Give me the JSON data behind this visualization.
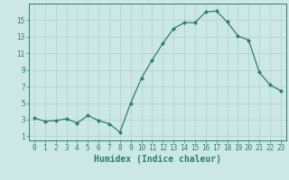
{
  "x": [
    0,
    1,
    2,
    3,
    4,
    5,
    6,
    7,
    8,
    9,
    10,
    11,
    12,
    13,
    14,
    15,
    16,
    17,
    18,
    19,
    20,
    21,
    22,
    23
  ],
  "y": [
    3.2,
    2.8,
    2.9,
    3.1,
    2.6,
    3.5,
    2.9,
    2.5,
    1.5,
    5.0,
    8.0,
    10.2,
    12.2,
    14.0,
    14.7,
    14.7,
    16.0,
    16.1,
    14.8,
    13.1,
    12.6,
    8.7,
    7.2,
    6.5
  ],
  "line_color": "#2e7d6e",
  "marker": "D",
  "marker_size": 2,
  "bg_color": "#cce8e5",
  "grid_color": "#b0cece",
  "xlabel": "Humidex (Indice chaleur)",
  "ylabel": "",
  "xlim": [
    -0.5,
    23.5
  ],
  "ylim": [
    0.5,
    17.0
  ],
  "xticks": [
    0,
    1,
    2,
    3,
    4,
    5,
    6,
    7,
    8,
    9,
    10,
    11,
    12,
    13,
    14,
    15,
    16,
    17,
    18,
    19,
    20,
    21,
    22,
    23
  ],
  "yticks": [
    1,
    3,
    5,
    7,
    9,
    11,
    13,
    15
  ],
  "tick_fontsize": 5.5,
  "xlabel_fontsize": 7.0,
  "label_color": "#2e7d6e",
  "spine_color": "#2e7d6e",
  "linewidth": 0.9
}
